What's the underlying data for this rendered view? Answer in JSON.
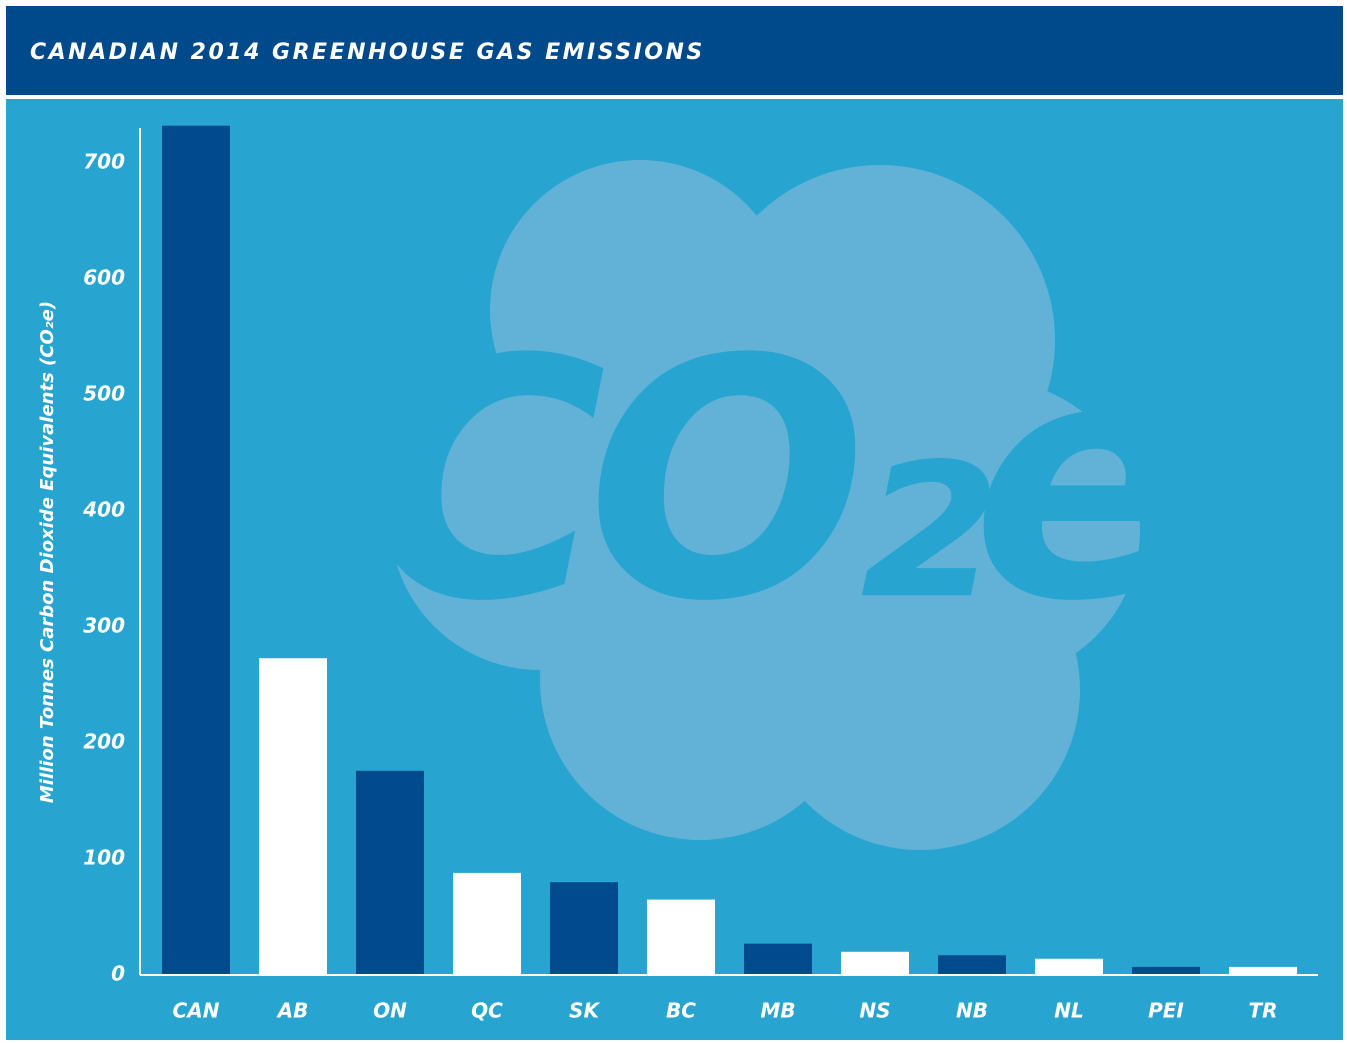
{
  "chart_data": {
    "type": "bar",
    "title": "CANADIAN 2014 GREENHOUSE GAS EMISSIONS",
    "y_label": "Million Tonnes Carbon Dioxide Equivalents (CO₂e)",
    "background_text": "CO₂e",
    "categories": [
      "CAN",
      "AB",
      "ON",
      "QC",
      "SK",
      "BC",
      "MB",
      "NS",
      "NB",
      "NL",
      "PEI",
      "TR"
    ],
    "values": [
      732,
      273,
      176,
      88,
      80,
      65,
      27,
      20,
      17,
      14,
      7,
      7
    ],
    "colors": [
      "#004a8d",
      "#ffffff",
      "#004a8d",
      "#ffffff",
      "#004a8d",
      "#ffffff",
      "#004a8d",
      "#ffffff",
      "#004a8d",
      "#ffffff",
      "#004a8d",
      "#ffffff"
    ],
    "ylim": [
      0,
      730
    ],
    "yticks": [
      0,
      100,
      200,
      300,
      400,
      500,
      600,
      700
    ],
    "grid": false
  }
}
